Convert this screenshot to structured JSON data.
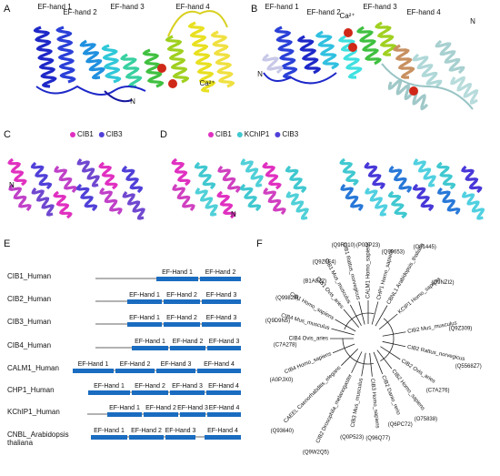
{
  "panels": {
    "A": {
      "label": "A",
      "annotations": [
        "EF-hand 1",
        "EF-hand 2",
        "EF-hand 3",
        "EF-hand 4",
        "N",
        "Ca²⁺"
      ]
    },
    "B": {
      "label": "B",
      "annotations": [
        "EF-hand 1",
        "EF-hand 2",
        "Ca²⁺",
        "EF-hand 3",
        "EF-hand 4",
        "N",
        "N"
      ]
    },
    "C": {
      "label": "C",
      "legend": [
        "CIB1",
        "CIB3"
      ],
      "annotations": [
        "N"
      ]
    },
    "D": {
      "label": "D",
      "legend": [
        "CIB1",
        "KChIP1",
        "CIB3"
      ],
      "annotations": [
        "N"
      ]
    },
    "E": {
      "label": "E",
      "rows": [
        {
          "name": "CIB1_Human",
          "domains": [
            "EF-Hand 1",
            "EF-Hand 2"
          ]
        },
        {
          "name": "CIB2_Human",
          "domains": [
            "EF-Hand 1",
            "EF-Hand 2",
            "EF-Hand 3"
          ]
        },
        {
          "name": "CIB3_Human",
          "domains": [
            "EF-Hand 1",
            "EF-Hand 2",
            "EF-Hand 3"
          ]
        },
        {
          "name": "CIB4_Human",
          "domains": [
            "EF-Hand 1",
            "EF-Hand 2",
            "EF-Hand 3"
          ]
        },
        {
          "name": "CALM1_Human",
          "domains": [
            "EF-Hand 1",
            "EF-Hand 2",
            "EF-Hand 3",
            "EF-Hand 4"
          ]
        },
        {
          "name": "CHP1_Human",
          "domains": [
            "EF-Hand 1",
            "EF-Hand 2",
            "EF-Hand 3",
            "EF-Hand 4"
          ]
        },
        {
          "name": "KChIP1_Human",
          "domains": [
            "EF-Hand 1",
            "EF-Hand 2",
            "EF-Hand 3",
            "EF-Hand 4"
          ]
        },
        {
          "name": "CNBL_Arabidopsis thaliana",
          "domains": [
            "EF-Hand 1",
            "EF-Hand 2",
            "EF-Hand 3",
            "EF-Hand 4"
          ]
        }
      ]
    },
    "F": {
      "label": "F",
      "leaves": [
        {
          "name": "CIB1 Homo_sapiens",
          "id": "(Q99828)"
        },
        {
          "name": "CIB1 Ovis_aries",
          "id": "(B1A8Z2)"
        },
        {
          "name": "CIB1 Mus_musculus",
          "id": "(Q9Z0F4)"
        },
        {
          "name": "CIB1 Rattus_norvegicus",
          "id": "(Q9R010)"
        },
        {
          "name": "CALM1 Homo_sapiens",
          "id": "(P0DP23)"
        },
        {
          "name": "CHP1 Homo_sapiens",
          "id": "(Q99653)"
        },
        {
          "name": "CBNL1 Arabidopsis_thaliana",
          "id": "(O81445)"
        },
        {
          "name": "KCIP1 Homo_sapiens",
          "id": "(Q9NZI2)"
        },
        {
          "name": "CIB2 Mus_musculus",
          "id": "(Q9Z309)"
        },
        {
          "name": "CIB2 Rattus_norvegicus",
          "id": "(Q5568Z7)"
        },
        {
          "name": "CIB2 Ovis_aries",
          "id": "(C7A276)"
        },
        {
          "name": "CIB2 Homo_sapiens",
          "id": "(O75838)"
        },
        {
          "name": "CIB2 Danio_rerio",
          "id": "(Q6PC72)"
        },
        {
          "name": "CIB3 Homo_sapiens",
          "id": "(Q96Q77)"
        },
        {
          "name": "CIB3 Mus_musculus",
          "id": "(Q0P523)"
        },
        {
          "name": "CIB2 Drosophila_melanogaster",
          "id": "(Q9W2Q5)"
        },
        {
          "name": "CAEEL Caenorhabditis_elegans",
          "id": "(Q93640)"
        },
        {
          "name": "CIB4 Homo_sapiens",
          "id": "(A0PJX0)"
        },
        {
          "name": "CIB4 Ovis_aries",
          "id": "(C7A278)"
        },
        {
          "name": "CIB4 Mus_musculus",
          "id": "(Q9D9N5)"
        }
      ]
    }
  }
}
